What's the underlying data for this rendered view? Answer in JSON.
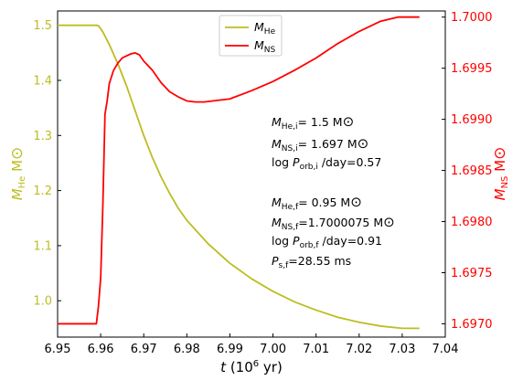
{
  "chart_data": {
    "type": "line",
    "xlabel": {
      "main": "t",
      "rest": " (10",
      "sup": "6",
      "tail": " yr)"
    },
    "y_left_label": {
      "main": "M",
      "sub": "He",
      "unit": " M",
      "sun": "⊙"
    },
    "y_right_label": {
      "main": "M",
      "sub": "NS",
      "unit": " M",
      "sun": "⊙"
    },
    "xlim": [
      6.95,
      7.04
    ],
    "ylim_left": [
      0.934,
      1.526
    ],
    "ylim_right": [
      1.69687,
      1.70006
    ],
    "x_ticks": [
      "6.95",
      "6.96",
      "6.97",
      "6.98",
      "6.99",
      "7.00",
      "7.01",
      "7.02",
      "7.03",
      "7.04"
    ],
    "y_left_ticks": [
      "1.0",
      "1.1",
      "1.2",
      "1.3",
      "1.4",
      "1.5"
    ],
    "y_right_ticks": [
      "1.6970",
      "1.6975",
      "1.6980",
      "1.6985",
      "1.6990",
      "1.6995",
      "1.7000"
    ],
    "legend": {
      "position": "top-center",
      "entries": [
        {
          "main": "M",
          "sub": "He",
          "color": "#bcbd22"
        },
        {
          "main": "M",
          "sub": "NS",
          "color": "#ff0000"
        }
      ]
    },
    "annotations": {
      "initial": [
        {
          "main": "M",
          "sub": "He,i",
          "text": "= 1.5 M",
          "sun": "⊙"
        },
        {
          "main": "M",
          "sub": "NS,i",
          "text": "= 1.697 M",
          "sun": "⊙"
        },
        {
          "pre": "log ",
          "main": "P",
          "sub": "orb,i",
          "text": " /day=0.57",
          "sun": ""
        }
      ],
      "final": [
        {
          "main": "M",
          "sub": "He,f",
          "text": "= 0.95 M",
          "sun": "⊙"
        },
        {
          "main": "M",
          "sub": "NS,f",
          "text": "=1.7000075 M",
          "sun": "⊙"
        },
        {
          "pre": "log ",
          "main": "P",
          "sub": "orb,f",
          "text": " /day=0.91",
          "sun": ""
        },
        {
          "main": "P",
          "sub": "s,f",
          "text": "=28.55 ms",
          "sun": ""
        }
      ]
    },
    "series": [
      {
        "name": "M_He",
        "axis": "left",
        "color": "#bcbd22",
        "x": [
          6.95,
          6.959,
          6.9595,
          6.9605,
          6.962,
          6.964,
          6.966,
          6.968,
          6.97,
          6.972,
          6.974,
          6.976,
          6.978,
          6.98,
          6.985,
          6.99,
          6.995,
          7.0,
          7.005,
          7.01,
          7.015,
          7.02,
          7.025,
          7.03,
          7.034
        ],
        "y": [
          1.5,
          1.5,
          1.499,
          1.488,
          1.465,
          1.43,
          1.39,
          1.345,
          1.3,
          1.26,
          1.225,
          1.195,
          1.168,
          1.146,
          1.103,
          1.068,
          1.04,
          1.017,
          0.998,
          0.983,
          0.97,
          0.961,
          0.954,
          0.95,
          0.95
        ]
      },
      {
        "name": "M_NS",
        "axis": "right",
        "color": "#ff0000",
        "x": [
          6.95,
          6.958,
          6.959,
          6.9595,
          6.96,
          6.9605,
          6.961,
          6.9615,
          6.962,
          6.963,
          6.964,
          6.965,
          6.966,
          6.967,
          6.968,
          6.969,
          6.97,
          6.972,
          6.974,
          6.976,
          6.978,
          6.98,
          6.982,
          6.984,
          6.986,
          6.99,
          6.995,
          7.0,
          7.005,
          7.01,
          7.015,
          7.02,
          7.025,
          7.029,
          7.03,
          7.034
        ],
        "y": [
          1.697,
          1.697,
          1.697,
          1.69718,
          1.69745,
          1.69815,
          1.69905,
          1.69918,
          1.69935,
          1.69948,
          1.69955,
          1.6996,
          1.69962,
          1.69964,
          1.69965,
          1.69963,
          1.69957,
          1.69948,
          1.69936,
          1.69927,
          1.69922,
          1.69918,
          1.69917,
          1.69917,
          1.69918,
          1.6992,
          1.69928,
          1.69937,
          1.69948,
          1.6996,
          1.69974,
          1.69986,
          1.69996,
          1.7,
          1.7,
          1.7
        ]
      }
    ]
  }
}
